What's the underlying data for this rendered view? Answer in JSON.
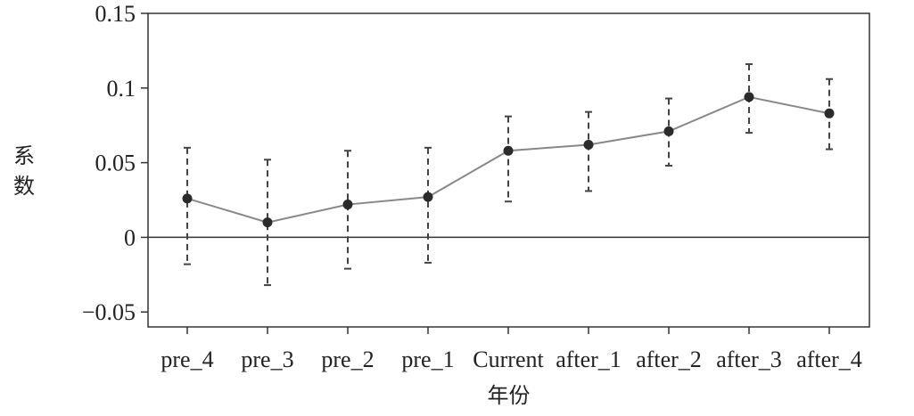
{
  "chart_data": {
    "type": "line",
    "title": "",
    "xlabel": "年份",
    "ylabel": "系数",
    "categories": [
      "pre_4",
      "pre_3",
      "pre_2",
      "pre_1",
      "Current",
      "after_1",
      "after_2",
      "after_3",
      "after_4"
    ],
    "series": [
      {
        "values": [
          0.026,
          0.01,
          0.022,
          0.027,
          0.058,
          0.062,
          0.071,
          0.094,
          0.083
        ],
        "lower": [
          -0.018,
          -0.032,
          -0.021,
          -0.017,
          0.024,
          0.031,
          0.048,
          0.07,
          0.059
        ],
        "upper": [
          0.06,
          0.052,
          0.058,
          0.06,
          0.081,
          0.084,
          0.093,
          0.116,
          0.106
        ]
      }
    ],
    "ylim": [
      -0.06,
      0.15
    ],
    "yticks": [
      -0.05,
      0,
      0.05,
      0.1,
      0.15
    ],
    "ytick_labels": [
      "−0.05",
      "0",
      "0.05",
      "0.1",
      "0.15"
    ],
    "zero_line": true,
    "grid": false,
    "colors": {
      "line": "#888888",
      "marker": "#2b2b2b",
      "errorbar": "#444444",
      "zero": "#333333",
      "frame": "#333333",
      "plot_bg": "#ffffff"
    }
  }
}
